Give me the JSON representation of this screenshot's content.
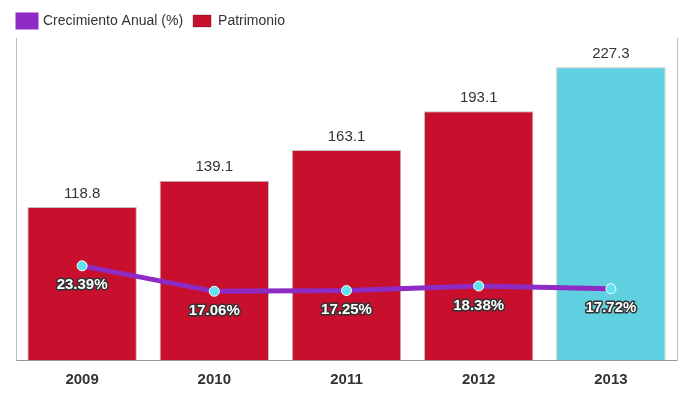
{
  "chart_data": {
    "type": "bar",
    "categories": [
      "2009",
      "2010",
      "2011",
      "2012",
      "2013"
    ],
    "series": [
      {
        "name": "Patrimonio",
        "type": "bar",
        "colors": [
          "#c8102e",
          "#c8102e",
          "#c8102e",
          "#c8102e",
          "#5fd0e0"
        ],
        "values": [
          118.8,
          139.1,
          163.1,
          193.1,
          227.3
        ]
      },
      {
        "name": "Crecimiento Anual (%)",
        "type": "line",
        "axis": "y2",
        "color": "#8e2bc4",
        "marker": "circle",
        "values": [
          23.39,
          17.06,
          17.25,
          18.38,
          17.72
        ],
        "value_labels": [
          "23.39%",
          "17.06%",
          "17.25%",
          "18.38%",
          "17.72%"
        ]
      }
    ],
    "ylim": [
      0,
      250
    ],
    "y2lim": [
      0,
      80
    ],
    "data_labels": true,
    "legend": "top-left",
    "grid": false,
    "tick_labels": "x"
  }
}
